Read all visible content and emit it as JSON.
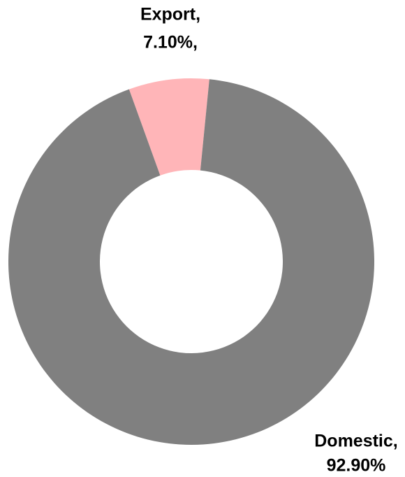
{
  "chart_data": {
    "type": "donut",
    "categories": [
      "Export,",
      "Domestic,"
    ],
    "values": [
      7.1,
      92.9
    ],
    "value_labels": [
      "7.10%,",
      "92.90%"
    ],
    "colors": [
      "#ffb5b8",
      "#808080"
    ]
  }
}
